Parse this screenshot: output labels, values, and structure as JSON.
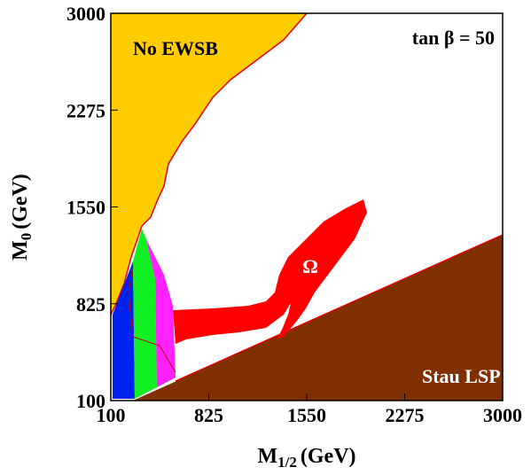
{
  "chart_data": {
    "type": "region",
    "xlabel": {
      "symbol": "M",
      "subscript": "1/2",
      "unit": "(GeV)"
    },
    "ylabel": {
      "symbol": "M",
      "subscript": "0",
      "unit": "(GeV)"
    },
    "xlim": [
      100,
      3000
    ],
    "ylim": [
      100,
      3000
    ],
    "xticks": [
      100,
      825,
      1550,
      2275,
      3000
    ],
    "yticks": [
      100,
      825,
      1550,
      2275,
      3000
    ],
    "annotations": [
      "No EWSB",
      "tan β = 50",
      "Ω",
      "Stau LSP"
    ]
  }
}
